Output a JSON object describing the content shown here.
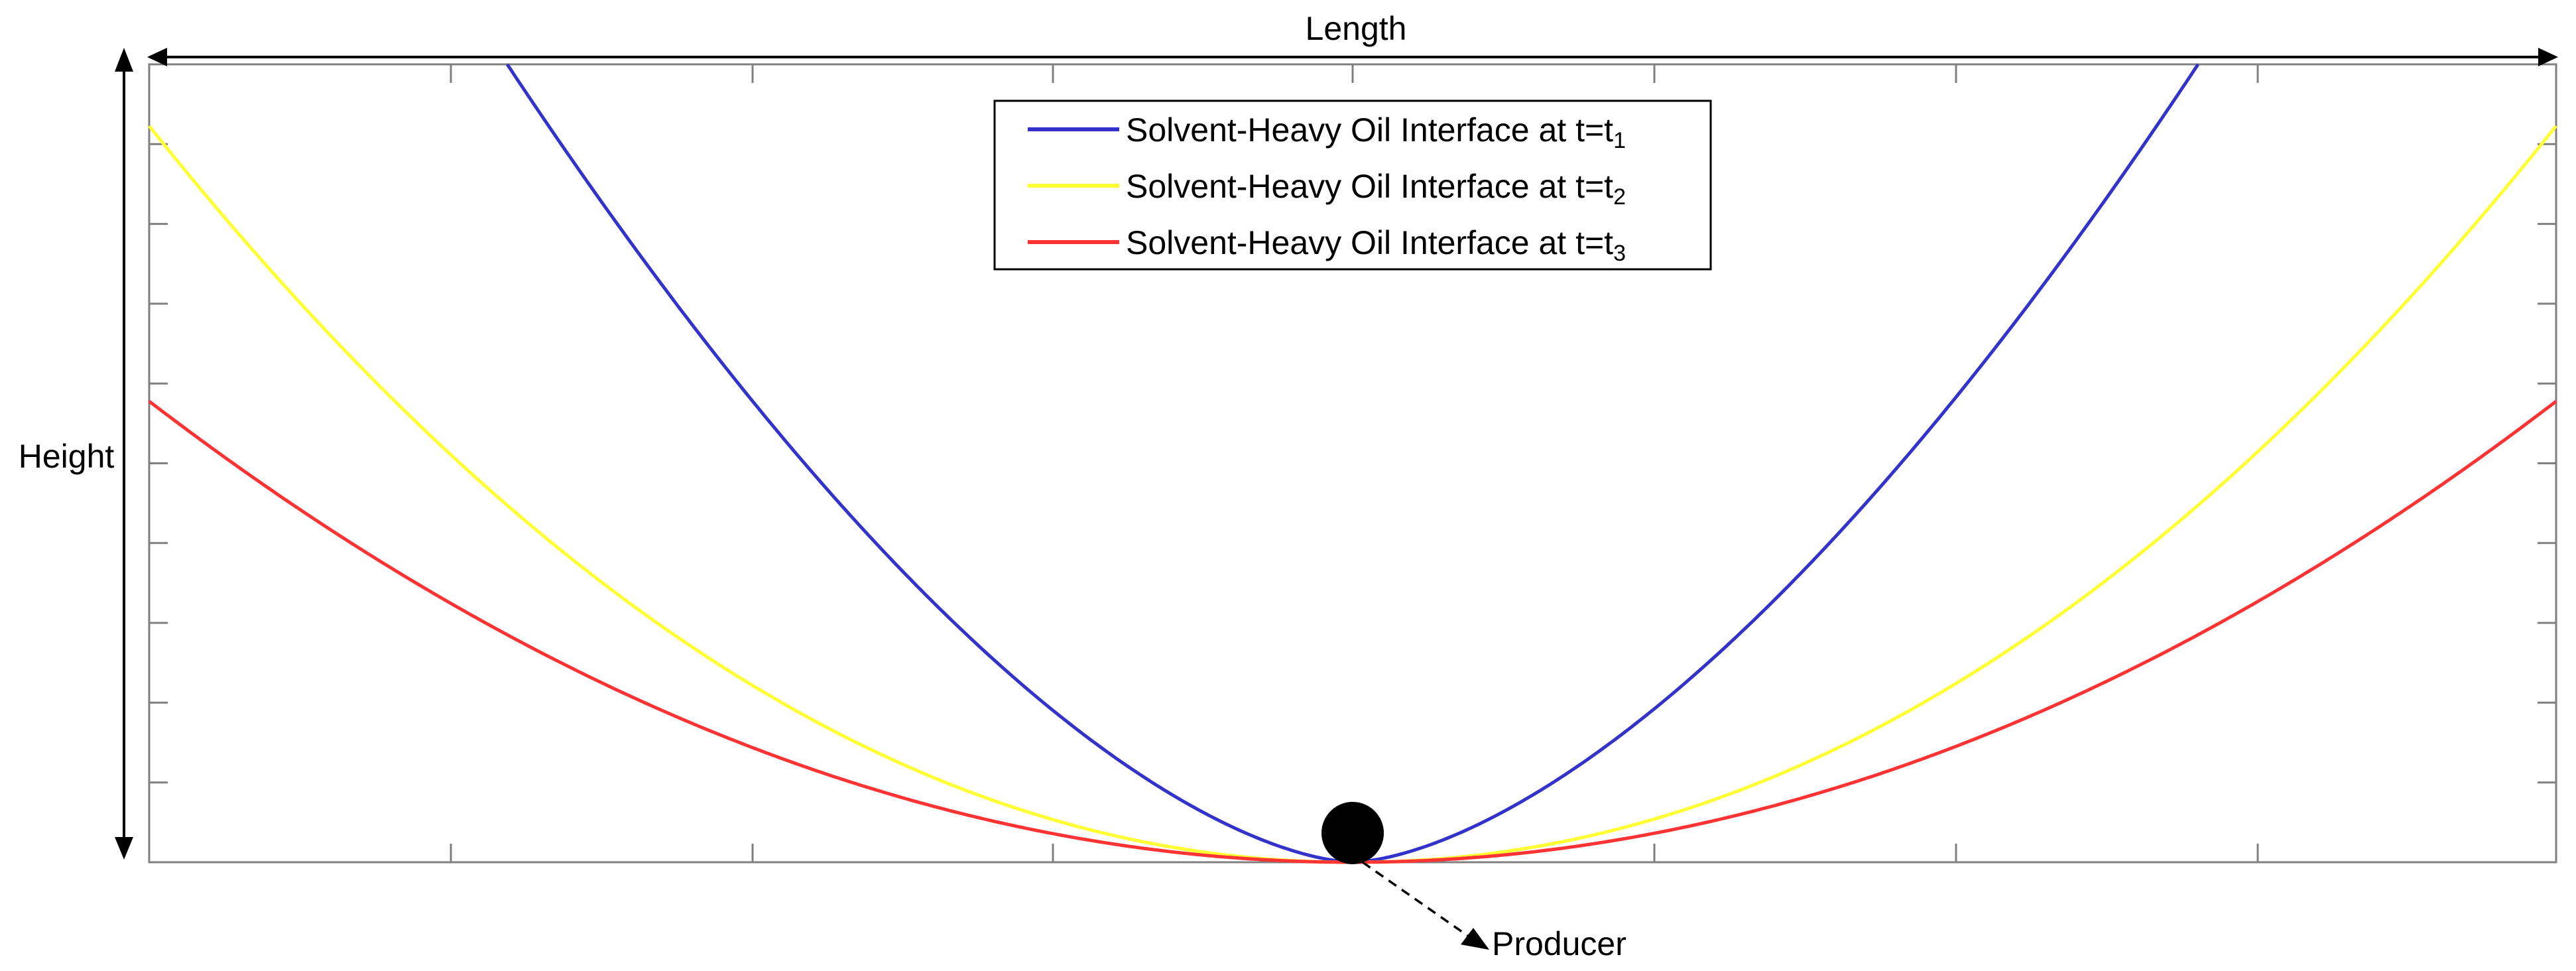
{
  "diagram": {
    "length_label": "Length",
    "height_label": "Height",
    "producer_label": "Producer"
  },
  "legend": {
    "items": [
      {
        "text": "Solvent-Heavy Oil Interface at t=t",
        "subscript": "1",
        "color": "#3333cc"
      },
      {
        "text": "Solvent-Heavy Oil Interface at t=t",
        "subscript": "2",
        "color": "#ffff33"
      },
      {
        "text": "Solvent-Heavy Oil Interface at t=t",
        "subscript": "3",
        "color": "#ff3333"
      }
    ]
  },
  "colors": {
    "frame": "#808080",
    "arrows": "#000000",
    "producer": "#000000"
  }
}
